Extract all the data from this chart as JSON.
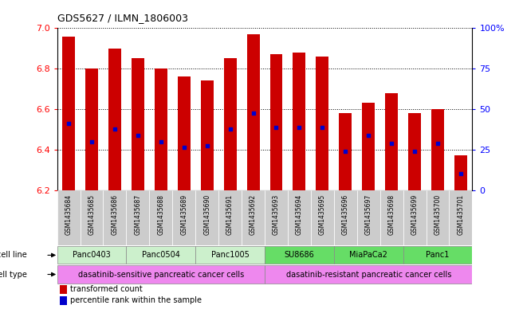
{
  "title": "GDS5627 / ILMN_1806003",
  "samples": [
    "GSM1435684",
    "GSM1435685",
    "GSM1435686",
    "GSM1435687",
    "GSM1435688",
    "GSM1435689",
    "GSM1435690",
    "GSM1435691",
    "GSM1435692",
    "GSM1435693",
    "GSM1435694",
    "GSM1435695",
    "GSM1435696",
    "GSM1435697",
    "GSM1435698",
    "GSM1435699",
    "GSM1435700",
    "GSM1435701"
  ],
  "bar_values": [
    6.96,
    6.8,
    6.9,
    6.85,
    6.8,
    6.76,
    6.74,
    6.85,
    6.97,
    6.87,
    6.88,
    6.86,
    6.58,
    6.63,
    6.68,
    6.58,
    6.6,
    6.37
  ],
  "blue_dot_values": [
    6.53,
    6.44,
    6.5,
    6.47,
    6.44,
    6.41,
    6.42,
    6.5,
    6.58,
    6.51,
    6.51,
    6.51,
    6.39,
    6.47,
    6.43,
    6.39,
    6.43,
    6.28
  ],
  "ylim_left": [
    6.2,
    7.0
  ],
  "ylim_right": [
    0,
    100
  ],
  "yticks_left": [
    6.2,
    6.4,
    6.6,
    6.8,
    7.0
  ],
  "yticks_right": [
    0,
    25,
    50,
    75,
    100
  ],
  "ytick_labels_right": [
    "0",
    "25",
    "50",
    "75",
    "100%"
  ],
  "cell_lines": [
    {
      "name": "Panc0403",
      "start": 0,
      "end": 2,
      "color": "#ccf0cc"
    },
    {
      "name": "Panc0504",
      "start": 3,
      "end": 5,
      "color": "#ccf0cc"
    },
    {
      "name": "Panc1005",
      "start": 6,
      "end": 8,
      "color": "#ccf0cc"
    },
    {
      "name": "SU8686",
      "start": 9,
      "end": 11,
      "color": "#66dd66"
    },
    {
      "name": "MiaPaCa2",
      "start": 12,
      "end": 14,
      "color": "#66dd66"
    },
    {
      "name": "Panc1",
      "start": 15,
      "end": 17,
      "color": "#66dd66"
    }
  ],
  "cell_types": [
    {
      "name": "dasatinib-sensitive pancreatic cancer cells",
      "start": 0,
      "end": 8
    },
    {
      "name": "dasatinib-resistant pancreatic cancer cells",
      "start": 9,
      "end": 17
    }
  ],
  "cell_type_color": "#ee88ee",
  "xtick_bg_color": "#cccccc",
  "bar_color": "#cc0000",
  "dot_color": "#0000cc",
  "legend_red": "transformed count",
  "legend_blue": "percentile rank within the sample",
  "cell_line_label": "cell line",
  "cell_type_label": "cell type"
}
